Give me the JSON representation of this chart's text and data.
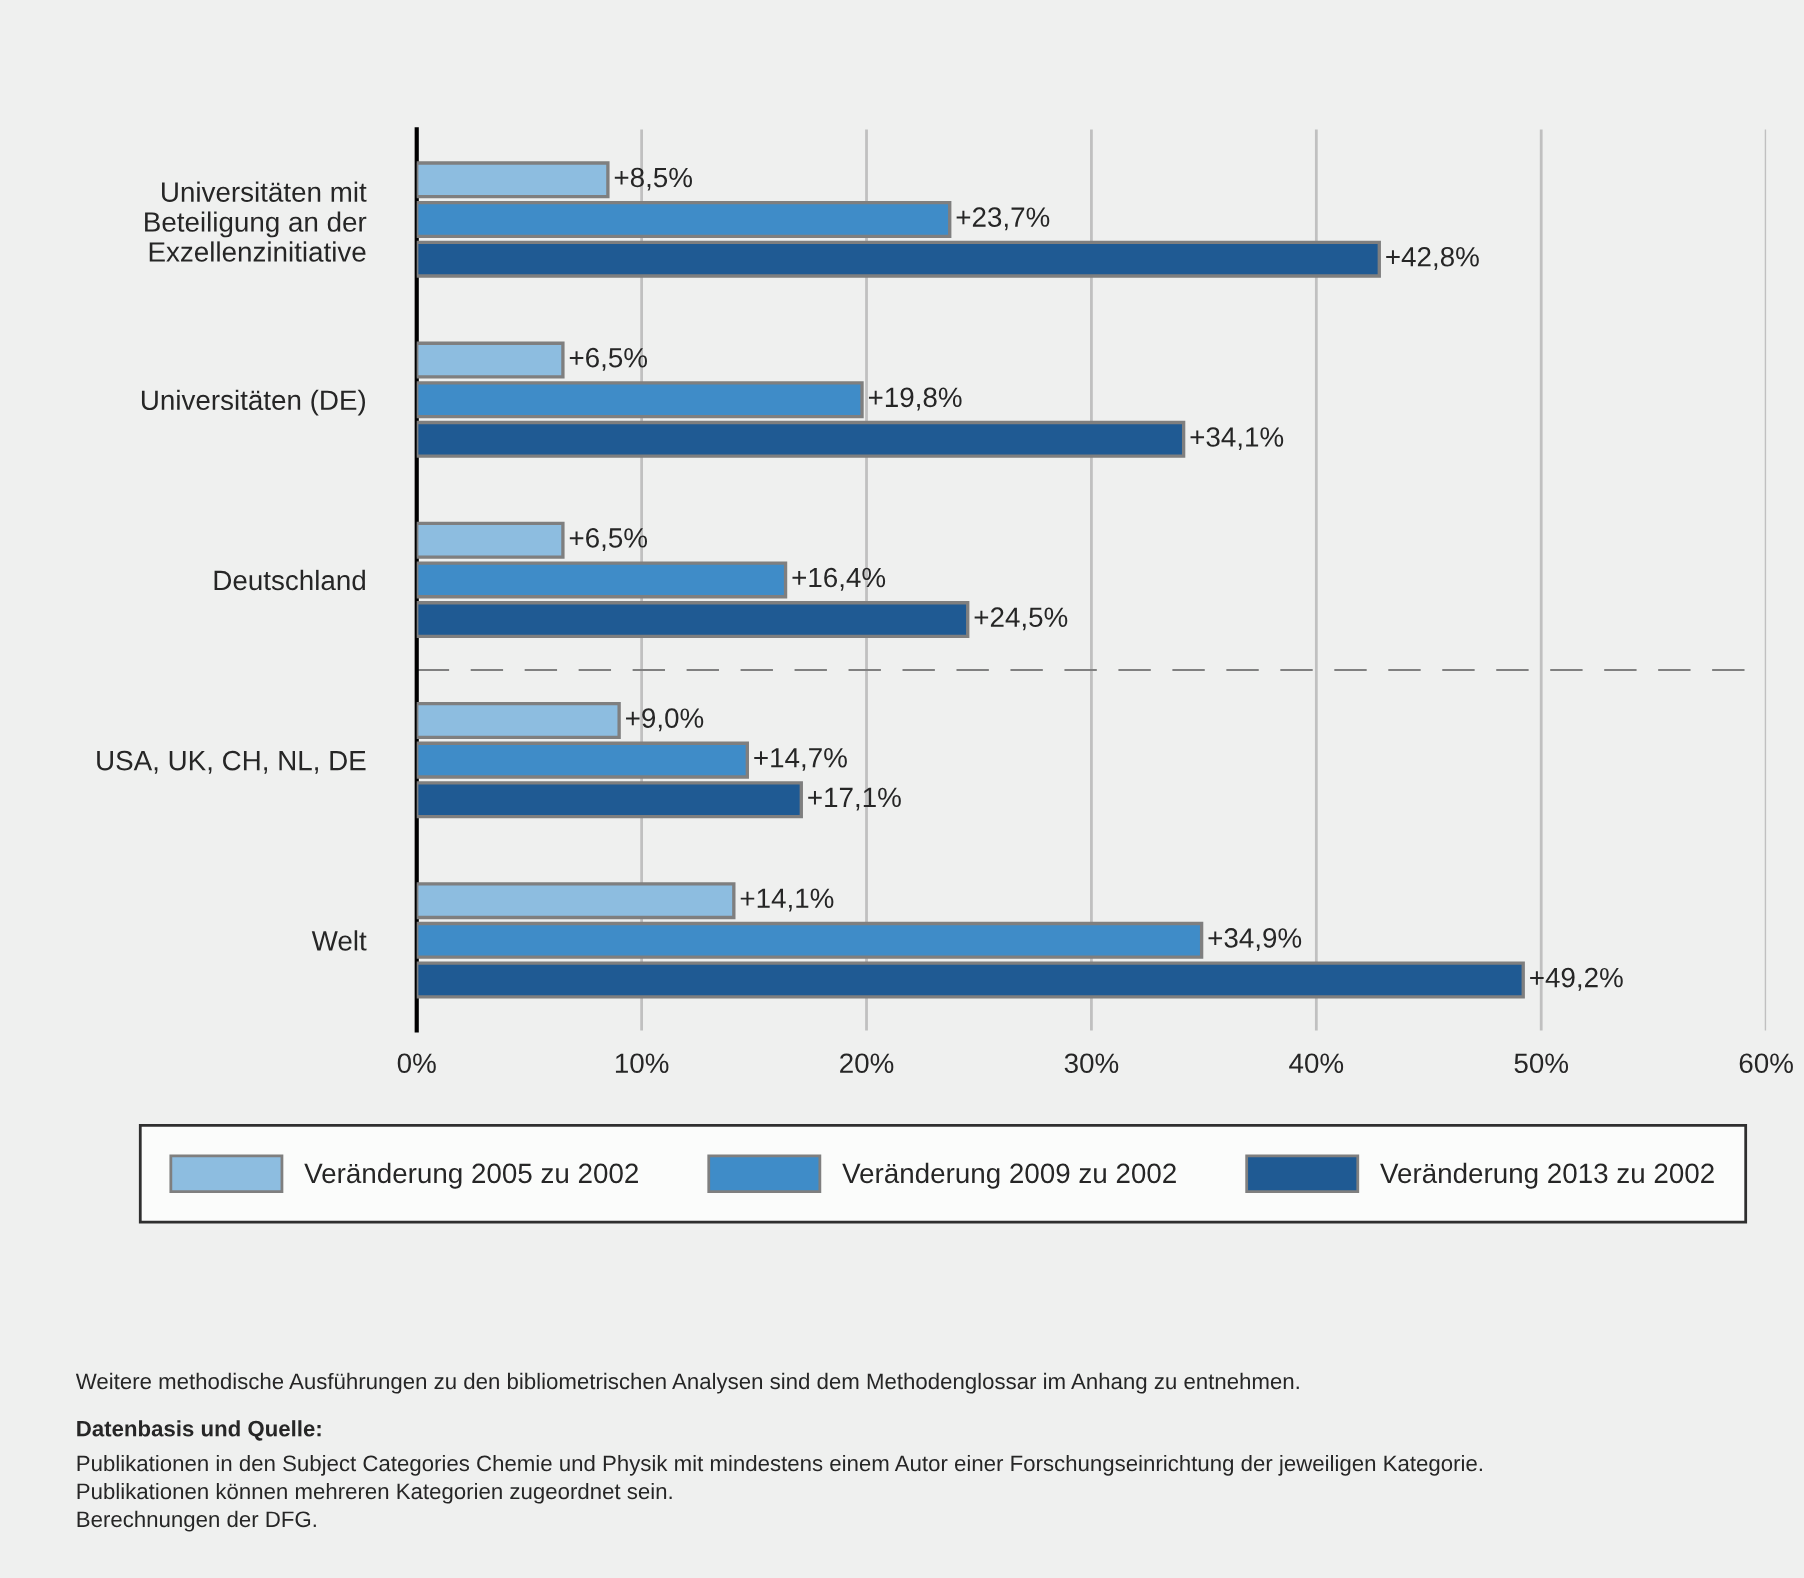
{
  "chart_data": {
    "type": "bar",
    "orientation": "horizontal",
    "categories": [
      "Universitäten mit\nBeteiligung an der\nExzellenzinitiative",
      "Universitäten (DE)",
      "Deutschland",
      "USA, UK, CH, NL, DE",
      "Welt"
    ],
    "series": [
      {
        "name": "Veränderung 2005 zu 2002",
        "color": "#8dbde0",
        "values": [
          8.5,
          6.5,
          6.5,
          9.0,
          14.1
        ],
        "value_labels": [
          "+8,5%",
          "+6,5%",
          "+6,5%",
          "+9,0%",
          "+14,1%"
        ]
      },
      {
        "name": "Veränderung 2009 zu 2002",
        "color": "#3f8cc8",
        "values": [
          23.7,
          19.8,
          16.4,
          14.7,
          34.9
        ],
        "value_labels": [
          "+23,7%",
          "+19,8%",
          "+16,4%",
          "+14,7%",
          "+34,9%"
        ]
      },
      {
        "name": "Veränderung 2013 zu 2002",
        "color": "#1f5a93",
        "values": [
          42.8,
          34.1,
          24.5,
          17.1,
          49.2
        ],
        "value_labels": [
          "+42,8%",
          "+34,1%",
          "+24,5%",
          "+17,1%",
          "+49,2%"
        ]
      }
    ],
    "xlim": [
      0,
      60
    ],
    "xticks": [
      {
        "value": 0,
        "label": "0%"
      },
      {
        "value": 10,
        "label": "10%"
      },
      {
        "value": 20,
        "label": "20%"
      },
      {
        "value": 30,
        "label": "30%"
      },
      {
        "value": 40,
        "label": "40%"
      },
      {
        "value": 50,
        "label": "50%"
      },
      {
        "value": 60,
        "label": "60%"
      }
    ],
    "grid": "x",
    "legend": "bottom",
    "annotations": [
      "Weitere methodische Ausführungen zu den bibliometrischen Analysen sind dem Methodenglossar im Anhang zu entnehmen.",
      "Datenbasis und Quelle:",
      "Publikationen in den Subject Categories Chemie und Physik mit mindestens einem Autor einer Forschungseinrichtung der jeweiligen Kategorie.\nPublikationen können mehreren Kategorien zugeordnet sein.\nBerechnungen der DFG."
    ]
  }
}
